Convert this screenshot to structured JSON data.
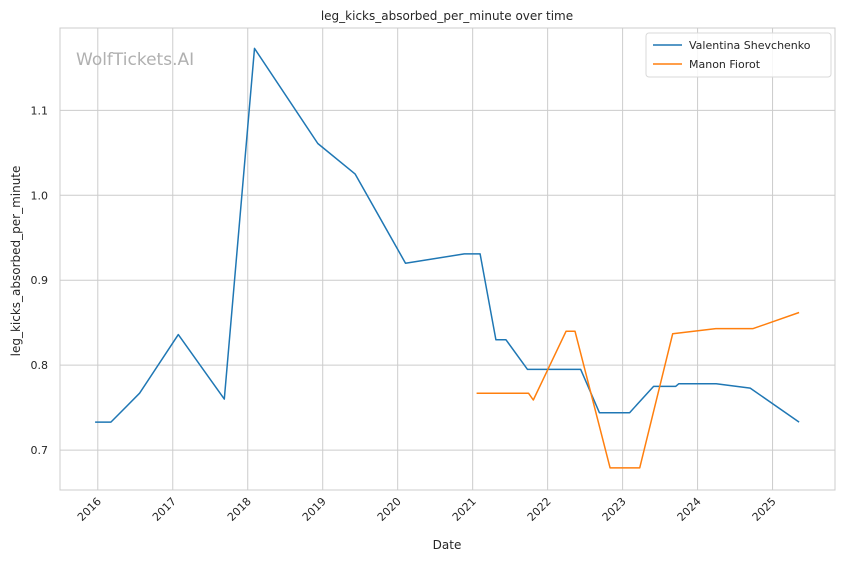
{
  "chart_data": {
    "type": "line",
    "title": "leg_kicks_absorbed_per_minute over time",
    "xlabel": "Date",
    "ylabel": "leg_kicks_absorbed_per_minute",
    "watermark": "WolfTickets.AI",
    "x_ticks": [
      "2016",
      "2017",
      "2018",
      "2019",
      "2020",
      "2021",
      "2022",
      "2023",
      "2024",
      "2025"
    ],
    "y_ticks": [
      "0.7",
      "0.8",
      "0.9",
      "1.0",
      "1.1"
    ],
    "xlim": [
      "2015-07-01",
      "2025-11-01"
    ],
    "ylim": [
      0.653,
      1.197
    ],
    "grid": true,
    "legend_position": "top-right",
    "series": [
      {
        "name": "Valentina Shevchenko",
        "color": "#1f77b4",
        "points": [
          [
            "2015-12-19",
            0.733
          ],
          [
            "2016-03-05",
            0.733
          ],
          [
            "2016-07-23",
            0.767
          ],
          [
            "2017-01-28",
            0.836
          ],
          [
            "2017-09-09",
            0.76
          ],
          [
            "2018-02-03",
            1.173
          ],
          [
            "2018-12-08",
            1.061
          ],
          [
            "2019-06-08",
            1.025
          ],
          [
            "2020-02-08",
            0.92
          ],
          [
            "2020-11-21",
            0.931
          ],
          [
            "2021-02-06",
            0.931
          ],
          [
            "2021-04-24",
            0.83
          ],
          [
            "2021-06-12",
            0.83
          ],
          [
            "2021-09-25",
            0.795
          ],
          [
            "2022-06-11",
            0.795
          ],
          [
            "2022-09-10",
            0.744
          ],
          [
            "2023-02-04",
            0.744
          ],
          [
            "2023-06-01",
            0.775
          ],
          [
            "2023-09-16",
            0.775
          ],
          [
            "2023-10-01",
            0.778
          ],
          [
            "2024-04-01",
            0.778
          ],
          [
            "2024-09-14",
            0.773
          ],
          [
            "2025-05-10",
            0.733
          ]
        ]
      },
      {
        "name": "Manon Fiorot",
        "color": "#ff7f0e",
        "points": [
          [
            "2021-01-20",
            0.767
          ],
          [
            "2021-09-30",
            0.767
          ],
          [
            "2021-10-23",
            0.759
          ],
          [
            "2022-04-01",
            0.84
          ],
          [
            "2022-05-14",
            0.84
          ],
          [
            "2022-11-01",
            0.679
          ],
          [
            "2023-03-25",
            0.679
          ],
          [
            "2023-09-02",
            0.837
          ],
          [
            "2024-03-30",
            0.843
          ],
          [
            "2024-09-28",
            0.843
          ],
          [
            "2025-05-10",
            0.862
          ]
        ]
      }
    ]
  }
}
